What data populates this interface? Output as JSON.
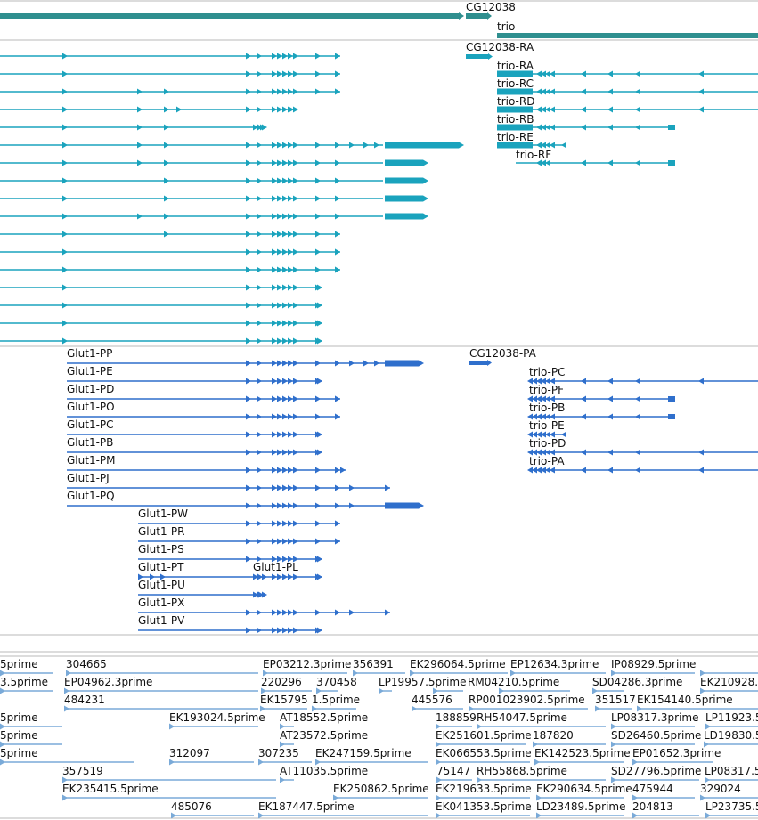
{
  "colors": {
    "gene": "#2f8f8f",
    "transcript": "#1aa3bd",
    "protein": "#2f6fcc",
    "est": "#7aaad8",
    "divider": "#b8b8b8"
  },
  "genes": {
    "cg12038": "CG12038",
    "trio": "trio"
  },
  "transcripts": {
    "cg12038_ra": "CG12038-RA",
    "trio_ra": "trio-RA",
    "trio_rc": "trio-RC",
    "trio_rd": "trio-RD",
    "trio_rb": "trio-RB",
    "trio_re": "trio-RE",
    "trio_rf": "trio-RF"
  },
  "proteins": {
    "glut1_pp": "Glut1-PP",
    "glut1_pe": "Glut1-PE",
    "glut1_pd": "Glut1-PD",
    "glut1_po": "Glut1-PO",
    "glut1_pc": "Glut1-PC",
    "glut1_pb": "Glut1-PB",
    "glut1_pm": "Glut1-PM",
    "glut1_pj": "Glut1-PJ",
    "glut1_pq": "Glut1-PQ",
    "glut1_pw": "Glut1-PW",
    "glut1_pr": "Glut1-PR",
    "glut1_ps": "Glut1-PS",
    "glut1_pt": "Glut1-PT",
    "glut1_pl": "Glut1-PL",
    "glut1_pu": "Glut1-PU",
    "glut1_px": "Glut1-PX",
    "glut1_pv": "Glut1-PV",
    "cg12038_pa": "CG12038-PA",
    "trio_pc": "trio-PC",
    "trio_pf": "trio-PF",
    "trio_pb": "trio-PB",
    "trio_pe": "trio-PE",
    "trio_pd": "trio-PD",
    "trio_pa": "trio-PA"
  },
  "ests": {
    "r1a": "5prime",
    "r1b": "304665",
    "r1c": "EP03212.3prime",
    "r1d": "356391",
    "r1e": "EK296064.5prime",
    "r1f": "EP12634.3prime",
    "r1g": "IP08929.5prime",
    "r2a": "3.5prime",
    "r2b": "EP04962.3prime",
    "r2c": "220296",
    "r2d": "370458",
    "r2e": "LP19957.5prime",
    "r2f": "RM04210.5prime",
    "r2g": "SD04286.3prime",
    "r2h": "EK210928.",
    "r3a": "484231",
    "r3b": "EK15795",
    "r3c": "1.5prime",
    "r3d": "445576",
    "r3e": "RP001023902.5prime",
    "r3f": "351517",
    "r3g": "EK154140.5prime",
    "r4a": "5prime",
    "r4b": "EK193024.5prime",
    "r4c": "AT18552.5prime",
    "r4d": "188859",
    "r4e": "RH54047.5prime",
    "r4f": "LP08317.3prime",
    "r4g": "LP11923.5",
    "r5a": "5prime",
    "r5b": "AT23572.5prime",
    "r5c": "EK251601.5prime",
    "r5d": "187820",
    "r5e": "SD26460.5prime",
    "r5f": "LD19830.5",
    "r6a": "5prime",
    "r6b": "312097",
    "r6c": "307235",
    "r6d": "EK247159.5prime",
    "r6e": "EK066553.5prime",
    "r6f": "EK142523.5prime",
    "r6g": "EP01652.3prime",
    "r7a": "357519",
    "r7b": "AT11035.5prime",
    "r7c": "75147",
    "r7d": "RH55868.5prime",
    "r7e": "SD27796.5prime",
    "r7f": "LP08317.5",
    "r8a": "EK235415.5prime",
    "r8b": "EK250862.5prime",
    "r8c": "EK219633.5prime",
    "r8d": "EK290634.5prime",
    "r8e": "475944",
    "r8f": "329024",
    "r9a": "485076",
    "r9b": "EK187447.5prime",
    "r9c": "EK041353.5prime",
    "r9d": "LD23489.5prime",
    "r9e": "204813",
    "r9f": "LP23735.5"
  }
}
